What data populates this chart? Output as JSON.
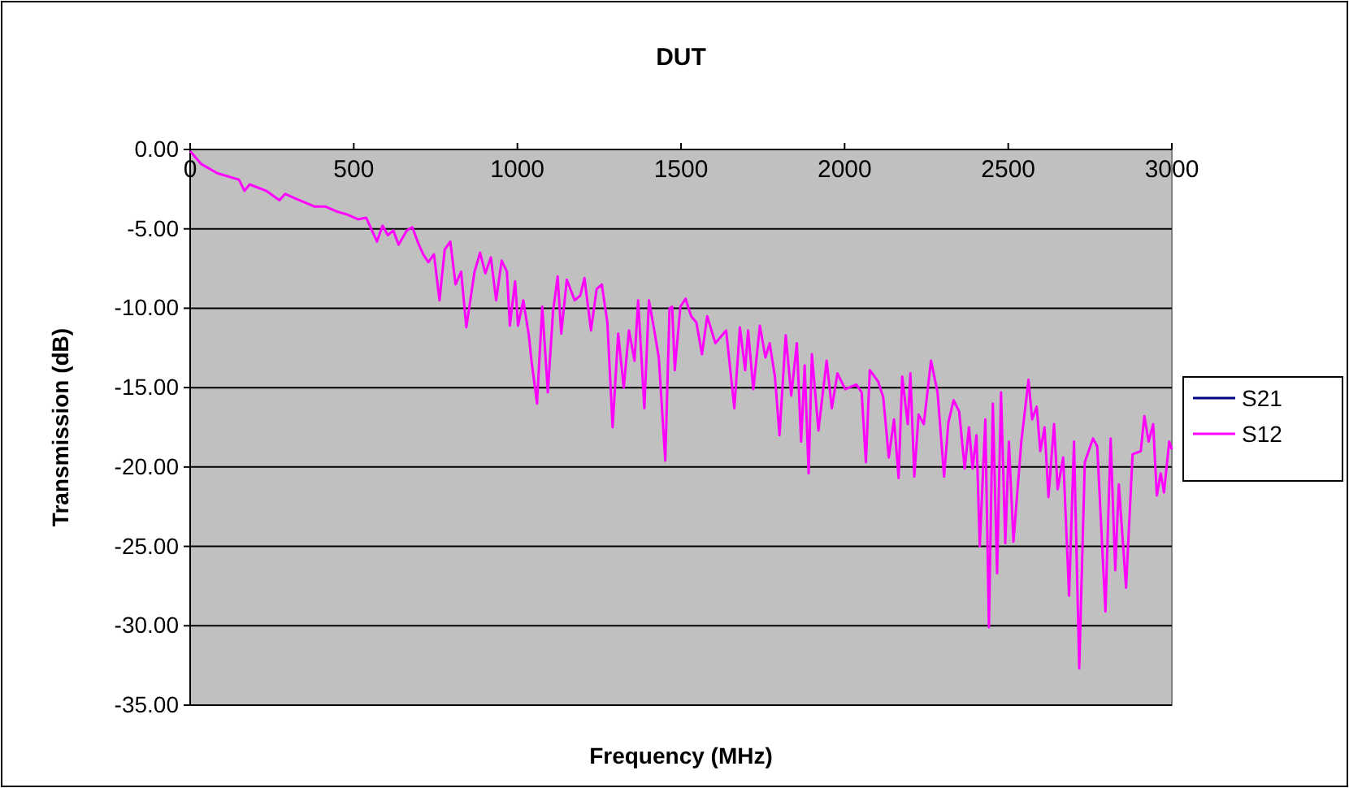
{
  "chart_data": {
    "type": "line",
    "title": "DUT",
    "xlabel": "Frequency (MHz)",
    "ylabel": "Transmission (dB)",
    "x": [
      0,
      33,
      83,
      149,
      166,
      182,
      232,
      273,
      290,
      323,
      381,
      414,
      447,
      480,
      513,
      538,
      571,
      588,
      604,
      621,
      637,
      662,
      679,
      695,
      712,
      728,
      745,
      762,
      778,
      795,
      811,
      828,
      844,
      869,
      886,
      902,
      919,
      935,
      952,
      968,
      977,
      993,
      1002,
      1018,
      1035,
      1043,
      1060,
      1076,
      1093,
      1109,
      1123,
      1134,
      1151,
      1175,
      1192,
      1205,
      1225,
      1242,
      1258,
      1275,
      1291,
      1308,
      1325,
      1341,
      1358,
      1369,
      1388,
      1402,
      1416,
      1432,
      1452,
      1465,
      1473,
      1481,
      1498,
      1514,
      1531,
      1547,
      1564,
      1580,
      1605,
      1638,
      1663,
      1680,
      1696,
      1705,
      1721,
      1741,
      1758,
      1771,
      1787,
      1801,
      1820,
      1837,
      1854,
      1867,
      1878,
      1890,
      1900,
      1920,
      1945,
      1961,
      1978,
      2002,
      2036,
      2052,
      2065,
      2077,
      2102,
      2118,
      2135,
      2151,
      2165,
      2176,
      2193,
      2201,
      2213,
      2226,
      2242,
      2264,
      2284,
      2304,
      2317,
      2333,
      2350,
      2367,
      2380,
      2391,
      2403,
      2413,
      2430,
      2441,
      2453,
      2466,
      2478,
      2491,
      2502,
      2516,
      2540,
      2562,
      2573,
      2587,
      2598,
      2611,
      2623,
      2640,
      2651,
      2668,
      2686,
      2701,
      2717,
      2734,
      2759,
      2772,
      2797,
      2813,
      2827,
      2838,
      2860,
      2880,
      2905,
      2916,
      2929,
      2943,
      2954,
      2966,
      2976,
      2992,
      3000
    ],
    "series": [
      {
        "name": "S21",
        "color": "#000080",
        "values": [
          null,
          null,
          null,
          null,
          null,
          null,
          null,
          null,
          null,
          null,
          null,
          null,
          null,
          null,
          null,
          null,
          null,
          null,
          null,
          null,
          null,
          null,
          null,
          null,
          null,
          null,
          null,
          null,
          null,
          null,
          null,
          null,
          null,
          null,
          null,
          null,
          null,
          null,
          null,
          null,
          null,
          null,
          null,
          null,
          null,
          null,
          null,
          null,
          null,
          null,
          null,
          null,
          null,
          null,
          null,
          null,
          null,
          null,
          null,
          null,
          null,
          null,
          null,
          null,
          null,
          null,
          null,
          null,
          null,
          null,
          null,
          null,
          null,
          null,
          null,
          null,
          null,
          null,
          null,
          null,
          null,
          null,
          null,
          null,
          null,
          null,
          null,
          null,
          null,
          null,
          null,
          null,
          null,
          null,
          null,
          null,
          null,
          null,
          null,
          null,
          null,
          null,
          null,
          null,
          null,
          null,
          null,
          null,
          null,
          null,
          null,
          null,
          null,
          null,
          null,
          null,
          null,
          null,
          null,
          null,
          null,
          null,
          null,
          null,
          null,
          null,
          null,
          null,
          null,
          null,
          null,
          null,
          null,
          null,
          null,
          null,
          null,
          null,
          null,
          null,
          null,
          null,
          null,
          null,
          null,
          null,
          null,
          null,
          null,
          null,
          null,
          null,
          null,
          null,
          null,
          null,
          null,
          null,
          null,
          null,
          null,
          null,
          null,
          null,
          null,
          null,
          null,
          null,
          null
        ]
      },
      {
        "name": "S12",
        "color": "#ff00ff",
        "values": [
          -0.1,
          -0.9,
          -1.5,
          -1.9,
          -2.6,
          -2.2,
          -2.6,
          -3.2,
          -2.8,
          -3.1,
          -3.6,
          -3.6,
          -3.9,
          -4.1,
          -4.4,
          -4.3,
          -5.8,
          -4.8,
          -5.4,
          -5.1,
          -6.0,
          -5.1,
          -4.9,
          -5.8,
          -6.6,
          -7.1,
          -6.6,
          -9.5,
          -6.3,
          -5.8,
          -8.5,
          -7.7,
          -11.2,
          -7.7,
          -6.5,
          -7.8,
          -6.8,
          -9.5,
          -7.0,
          -7.7,
          -11.1,
          -8.3,
          -11.1,
          -9.5,
          -11.7,
          -13.3,
          -16.0,
          -9.9,
          -15.3,
          -10.2,
          -8.0,
          -11.6,
          -8.2,
          -9.5,
          -9.2,
          -8.1,
          -11.4,
          -8.8,
          -8.5,
          -10.9,
          -17.5,
          -11.6,
          -15.0,
          -11.4,
          -13.3,
          -9.5,
          -16.3,
          -9.5,
          -11.1,
          -13.1,
          -19.6,
          -10.0,
          -9.9,
          -13.9,
          -9.9,
          -9.4,
          -10.5,
          -10.9,
          -12.9,
          -10.5,
          -12.2,
          -11.4,
          -16.3,
          -11.2,
          -13.9,
          -11.4,
          -15.1,
          -11.1,
          -13.1,
          -12.2,
          -14.3,
          -18.0,
          -11.7,
          -15.5,
          -12.2,
          -18.4,
          -13.6,
          -20.4,
          -12.9,
          -17.7,
          -13.3,
          -16.3,
          -14.1,
          -15.1,
          -14.8,
          -15.3,
          -19.7,
          -13.9,
          -14.6,
          -15.6,
          -19.4,
          -17.0,
          -20.7,
          -14.3,
          -17.3,
          -14.1,
          -20.6,
          -16.7,
          -17.3,
          -13.3,
          -15.3,
          -20.6,
          -17.2,
          -15.8,
          -16.5,
          -20.1,
          -17.5,
          -20.1,
          -18.0,
          -25.0,
          -17.0,
          -30.1,
          -16.0,
          -26.7,
          -15.3,
          -24.8,
          -18.4,
          -24.7,
          -18.4,
          -14.5,
          -17.0,
          -16.2,
          -19.0,
          -17.5,
          -21.9,
          -17.3,
          -21.4,
          -19.4,
          -28.1,
          -18.4,
          -32.7,
          -19.7,
          -18.2,
          -18.7,
          -29.1,
          -18.2,
          -26.5,
          -21.1,
          -27.6,
          -19.2,
          -19.0,
          -16.8,
          -18.4,
          -17.3,
          -21.8,
          -20.4,
          -21.6,
          -18.4,
          -18.9
        ]
      }
    ],
    "xlim": [
      0,
      3000
    ],
    "xticks": [
      0,
      500,
      1000,
      1500,
      2000,
      2500,
      3000
    ],
    "ylim": [
      -35,
      0
    ],
    "yticks": [
      {
        "value": -35,
        "label": "-35.00"
      },
      {
        "value": -30,
        "label": "-30.00"
      },
      {
        "value": -25,
        "label": "-25.00"
      },
      {
        "value": -20,
        "label": "-20.00"
      },
      {
        "value": -15,
        "label": "-15.00"
      },
      {
        "value": -10,
        "label": "-10.00"
      },
      {
        "value": -5,
        "label": "-5.00"
      },
      {
        "value": 0,
        "label": "0.00"
      }
    ],
    "grid": "y",
    "legend": "right",
    "marker": "none",
    "line_style": "solid"
  }
}
